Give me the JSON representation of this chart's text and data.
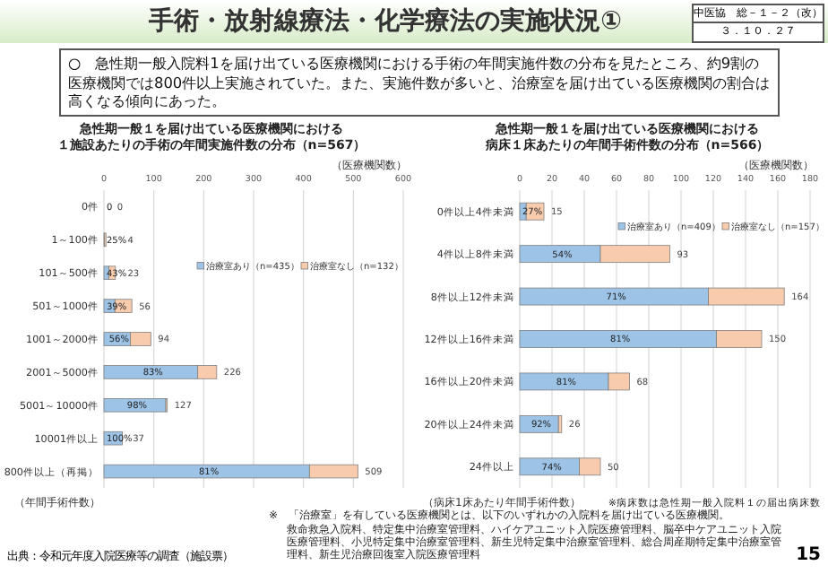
{
  "chart_data": [
    {
      "type": "other",
      "title": "手術・放射線療法・化学療法の実施状況①",
      "annotations": [
        "中医協　総－１－２（改）",
        "３．１０．２７",
        "○　急性期一般入院料1を届け出ている医療機関における手術の年間実施件数の分布を見たところ、約9割の医療機関では800件以上実施されていた。また、実施件数が多いと、治療室を届け出ている医療機関の割合は高くなる傾向にあった。",
        "出典：令和元年度入院医療等の調査（施設票）",
        "※　「治療室」を有している医療機関とは、以下のいずれかの入院料を届け出ている医療機関。",
        "救命救急入院料、特定集中治療室管理料、ハイケアユニット入院医療管理料、脳卒中ケアユニット入院医療管理料、小児特定集中治療室管理料、新生児特定集中治療室管理料、総合周産期特定集中治療室管理料、新生児治療回復室入院医療管理料",
        "15"
      ]
    },
    {
      "type": "bar",
      "orientation": "horizontal",
      "stacked": true,
      "title": "急性期一般１を届け出ている医療機関における",
      "subtitle": "１施設あたりの手術の年間実施件数の分布（n=567）",
      "xlabel": "（医療機関数）",
      "ylabel": "（年間手術件数）",
      "categories": [
        "0件",
        "1～100件",
        "101～500件",
        "501～1000件",
        "1001～2000件",
        "2001～5000件",
        "5001～10000件",
        "10001件以上",
        "800件以上（再掲）"
      ],
      "series": [
        {
          "name": "治療室あり（n=435）",
          "color": "#9dc3e6",
          "values": [
            0,
            1,
            10,
            22,
            53,
            188,
            124,
            37,
            412
          ]
        },
        {
          "name": "治療室なし（n=132）",
          "color": "#f8cbad",
          "values": [
            0,
            3,
            13,
            34,
            41,
            38,
            3,
            0,
            97
          ]
        }
      ],
      "totals": [
        "0",
        "4",
        "23",
        "56",
        "94",
        "226",
        "127",
        "37",
        "509"
      ],
      "annotations": [
        {
          "text": "0",
          "x": 0,
          "y": "0件"
        },
        {
          "text": "25%",
          "x": 0.5,
          "y": "1～100件"
        },
        {
          "text": "43%",
          "x": 5,
          "y": "101～500件"
        },
        {
          "text": "39%",
          "x": 11,
          "y": "501～1000件"
        },
        {
          "text": "56%",
          "x": 26,
          "y": "1001～2000件"
        },
        {
          "text": "83%",
          "x": 94,
          "y": "2001～5000件"
        },
        {
          "text": "98%",
          "x": 62,
          "y": "5001～10000件"
        },
        {
          "text": "100%",
          "x": 18,
          "y": "10001件以上"
        },
        {
          "text": "81%",
          "x": 206,
          "y": "800件以上（再掲）"
        }
      ],
      "xlim": [
        0,
        600
      ],
      "xticks": [
        0,
        100,
        200,
        300,
        400,
        500,
        600
      ],
      "grid": "x",
      "legend": "top right"
    },
    {
      "type": "bar",
      "orientation": "horizontal",
      "stacked": true,
      "title": "急性期一般１を届け出ている医療機関における",
      "subtitle": "病床１床あたりの年間手術件数の分布（n=566）",
      "xlabel": "（医療機関数）",
      "ylabel": "（病床1床あたり年間手術件数）",
      "categories": [
        "0件以上4件未満",
        "4件以上8件未満",
        "8件以上12件未満",
        "12件以上16件未満",
        "16件以上20件未満",
        "20件以上24件未満",
        "24件以上"
      ],
      "series": [
        {
          "name": "治療室あり（n=409）",
          "color": "#9dc3e6",
          "values": [
            4,
            50,
            117,
            122,
            55,
            24,
            37
          ]
        },
        {
          "name": "治療室なし（n=157）",
          "color": "#f8cbad",
          "values": [
            11,
            43,
            47,
            28,
            13,
            2,
            13
          ]
        }
      ],
      "totals": [
        "15",
        "93",
        "164",
        "150",
        "68",
        "26",
        "50"
      ],
      "xlim": [
        0,
        180
      ],
      "xticks": [
        0,
        20,
        40,
        60,
        80,
        100,
        120,
        140,
        160,
        180
      ],
      "grid": "x",
      "legend": "top right",
      "annotations": [
        "※病床数は急性期一般入院料１の届出病床数",
        {
          "text": "27%",
          "x": 2,
          "y": "0件以上4件未満"
        },
        {
          "text": "54%",
          "x": 25,
          "y": "4件以上8件未満"
        },
        {
          "text": "71%",
          "x": 58.5,
          "y": "8件以上12件未満"
        },
        {
          "text": "81%",
          "x": 61,
          "y": "12件以上16件未満"
        },
        {
          "text": "81%",
          "x": 27.5,
          "y": "16件以上20件未満"
        },
        {
          "text": "92%",
          "x": 12,
          "y": "20件以上24件未満"
        },
        {
          "text": "74%",
          "x": 18.5,
          "y": "24件以上"
        }
      ]
    }
  ]
}
